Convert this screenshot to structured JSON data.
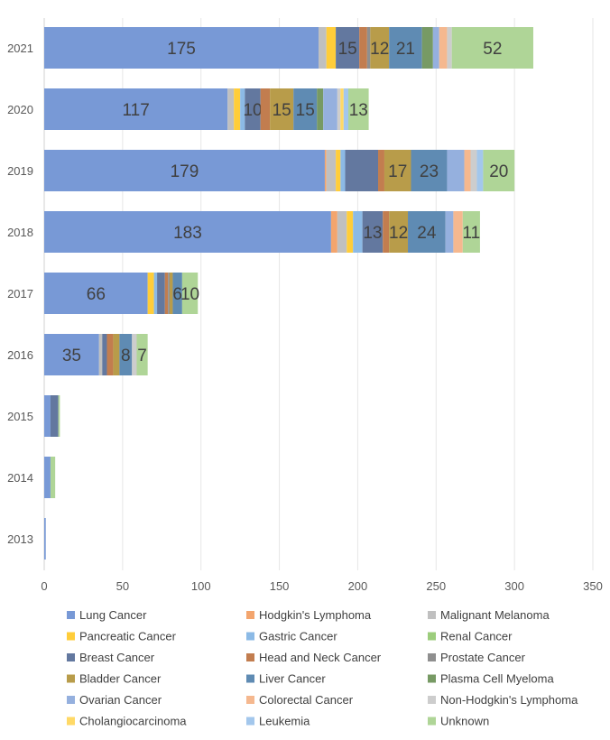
{
  "chart_data": {
    "type": "bar",
    "orientation": "horizontal",
    "stacked": true,
    "title": "",
    "xlabel": "",
    "ylabel": "",
    "xlim": [
      0,
      350
    ],
    "xticks": [
      0,
      50,
      100,
      150,
      200,
      250,
      300,
      350
    ],
    "grid": true,
    "legend_position": "bottom",
    "categories": [
      "2021",
      "2020",
      "2019",
      "2018",
      "2017",
      "2016",
      "2015",
      "2014",
      "2013"
    ],
    "series": [
      {
        "name": "Lung Cancer",
        "color": "#7899d6",
        "values": [
          175,
          117,
          179,
          183,
          66,
          35,
          4,
          4,
          1
        ]
      },
      {
        "name": "Hodgkin's Lymphoma",
        "color": "#f3a56e",
        "values": [
          0,
          0,
          1,
          4,
          0,
          0,
          0,
          0,
          0
        ]
      },
      {
        "name": "Malignant Melanoma",
        "color": "#c0c0c0",
        "values": [
          5,
          4,
          6,
          6,
          0,
          2,
          0,
          0,
          0
        ]
      },
      {
        "name": "Pancreatic Cancer",
        "color": "#ffcd3a",
        "values": [
          6,
          4,
          3,
          4,
          4,
          0,
          0,
          0,
          0
        ]
      },
      {
        "name": "Gastric Cancer",
        "color": "#8cbae6",
        "values": [
          0,
          3,
          3,
          6,
          2,
          0,
          0,
          0,
          0
        ]
      },
      {
        "name": "Renal Cancer",
        "color": "#9ccd7c",
        "values": [
          0,
          0,
          0,
          0,
          0,
          0,
          0,
          0,
          0
        ]
      },
      {
        "name": "Breast Cancer",
        "color": "#63789f",
        "values": [
          15,
          10,
          21,
          13,
          5,
          3,
          5,
          0,
          0
        ]
      },
      {
        "name": "Head and Neck Cancer",
        "color": "#c27d4f",
        "values": [
          5,
          6,
          4,
          4,
          2,
          4,
          0,
          0,
          0
        ]
      },
      {
        "name": "Prostate Cancer",
        "color": "#8f8f8f",
        "values": [
          2,
          0,
          0,
          0,
          1,
          0,
          0,
          0,
          0
        ]
      },
      {
        "name": "Bladder Cancer",
        "color": "#b89c4a",
        "values": [
          12,
          15,
          17,
          12,
          2,
          4,
          0,
          0,
          0
        ]
      },
      {
        "name": "Liver Cancer",
        "color": "#5f8bb3",
        "values": [
          21,
          15,
          23,
          24,
          6,
          8,
          0,
          0,
          0
        ]
      },
      {
        "name": "Plasma Cell Myeloma",
        "color": "#779a64",
        "values": [
          7,
          4,
          0,
          0,
          0,
          0,
          0,
          0,
          0
        ]
      },
      {
        "name": "Ovarian Cancer",
        "color": "#95b0de",
        "values": [
          4,
          9,
          11,
          5,
          0,
          0,
          0,
          0,
          0
        ]
      },
      {
        "name": "Colorectal Cancer",
        "color": "#f5b88f",
        "values": [
          5,
          0,
          4,
          6,
          0,
          0,
          0,
          0,
          0
        ]
      },
      {
        "name": "Non-Hodgkin's Lymphoma",
        "color": "#cdcdcd",
        "values": [
          3,
          2,
          4,
          0,
          0,
          3,
          0,
          0,
          0
        ]
      },
      {
        "name": "Cholangiocarcinoma",
        "color": "#ffd966",
        "values": [
          0,
          2,
          0,
          0,
          0,
          0,
          0,
          0,
          0
        ]
      },
      {
        "name": "Leukemia",
        "color": "#a3c7ec",
        "values": [
          0,
          3,
          4,
          0,
          0,
          0,
          0,
          0,
          0
        ]
      },
      {
        "name": "Unknown",
        "color": "#afd597",
        "values": [
          52,
          13,
          20,
          11,
          10,
          7,
          1,
          3,
          0
        ]
      }
    ],
    "data_labels": {
      "2021": [
        "Lung Cancer",
        "Breast Cancer",
        "Bladder Cancer",
        "Liver Cancer",
        "Unknown"
      ],
      "2020": [
        "Lung Cancer",
        "Breast Cancer",
        "Bladder Cancer",
        "Liver Cancer",
        "Unknown"
      ],
      "2019": [
        "Lung Cancer",
        "Bladder Cancer",
        "Liver Cancer",
        "Unknown"
      ],
      "2018": [
        "Lung Cancer",
        "Breast Cancer",
        "Bladder Cancer",
        "Liver Cancer",
        "Unknown"
      ],
      "2017": [
        "Lung Cancer",
        "Liver Cancer",
        "Unknown"
      ],
      "2016": [
        "Lung Cancer",
        "Liver Cancer",
        "Unknown"
      ]
    },
    "gridline_color": "#e6e6e6",
    "axis_color": "#d0d0d0"
  }
}
